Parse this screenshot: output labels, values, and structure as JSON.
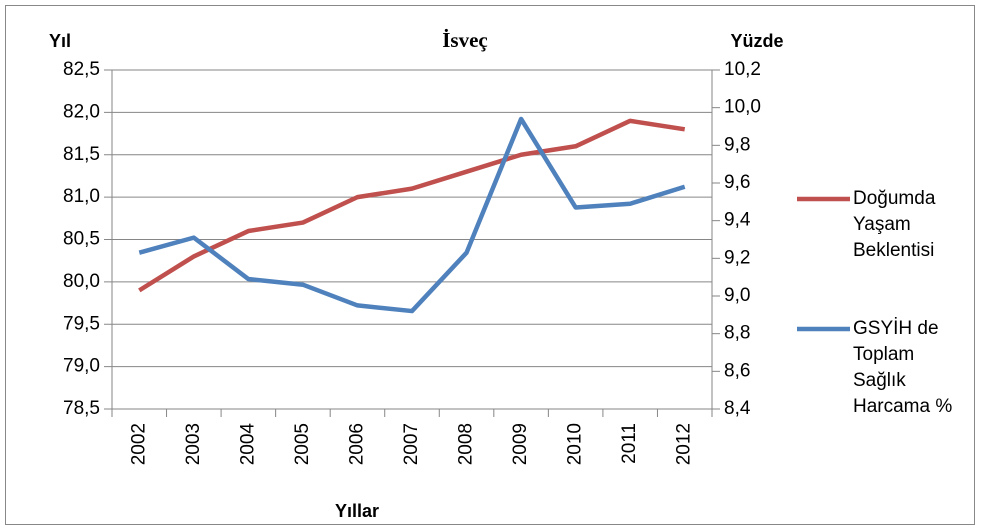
{
  "chart_data": {
    "type": "line",
    "title": "İsveç",
    "y_label": "Yıl",
    "y2_label": "Yüzde",
    "x_label": "Yıllar",
    "categories": [
      "2002",
      "2003",
      "2004",
      "2005",
      "2006",
      "2007",
      "2008",
      "2009",
      "2010",
      "2011",
      "2012"
    ],
    "series": [
      {
        "name": "Doğumda Yaşam Beklentisi",
        "color": "#c0504d",
        "values": [
          79.9,
          80.3,
          80.6,
          80.7,
          81.0,
          81.1,
          81.3,
          81.5,
          81.6,
          81.9,
          81.8
        ]
      },
      {
        "name": "GSYİH de Toplam Sağlık Harcama %",
        "color": "#4f81bd",
        "axis": "y2",
        "values": [
          9.23,
          9.31,
          9.09,
          9.06,
          8.95,
          8.92,
          9.23,
          9.94,
          9.47,
          9.49,
          9.58
        ]
      }
    ],
    "ylim": [
      78.5,
      82.5
    ],
    "yticks": [
      {
        "value": 78.5,
        "label": "78,5"
      },
      {
        "value": 79.0,
        "label": "79,0"
      },
      {
        "value": 79.5,
        "label": "79,5"
      },
      {
        "value": 80.0,
        "label": "80,0"
      },
      {
        "value": 80.5,
        "label": "80,5"
      },
      {
        "value": 81.0,
        "label": "81,0"
      },
      {
        "value": 81.5,
        "label": "81,5"
      },
      {
        "value": 82.0,
        "label": "82,0"
      },
      {
        "value": 82.5,
        "label": "82,5"
      }
    ],
    "y2lim": [
      8.4,
      10.2
    ],
    "y2ticks": [
      {
        "value": 8.4,
        "label": "8,4"
      },
      {
        "value": 8.6,
        "label": "8,6"
      },
      {
        "value": 8.8,
        "label": "8,8"
      },
      {
        "value": 9.0,
        "label": "9,0"
      },
      {
        "value": 9.2,
        "label": "9,2"
      },
      {
        "value": 9.4,
        "label": "9,4"
      },
      {
        "value": 9.6,
        "label": "9,6"
      },
      {
        "value": 9.8,
        "label": "9,8"
      },
      {
        "value": 10.0,
        "label": "10,0"
      },
      {
        "value": 10.2,
        "label": "10,2"
      }
    ],
    "grid": true,
    "legend": "right"
  }
}
